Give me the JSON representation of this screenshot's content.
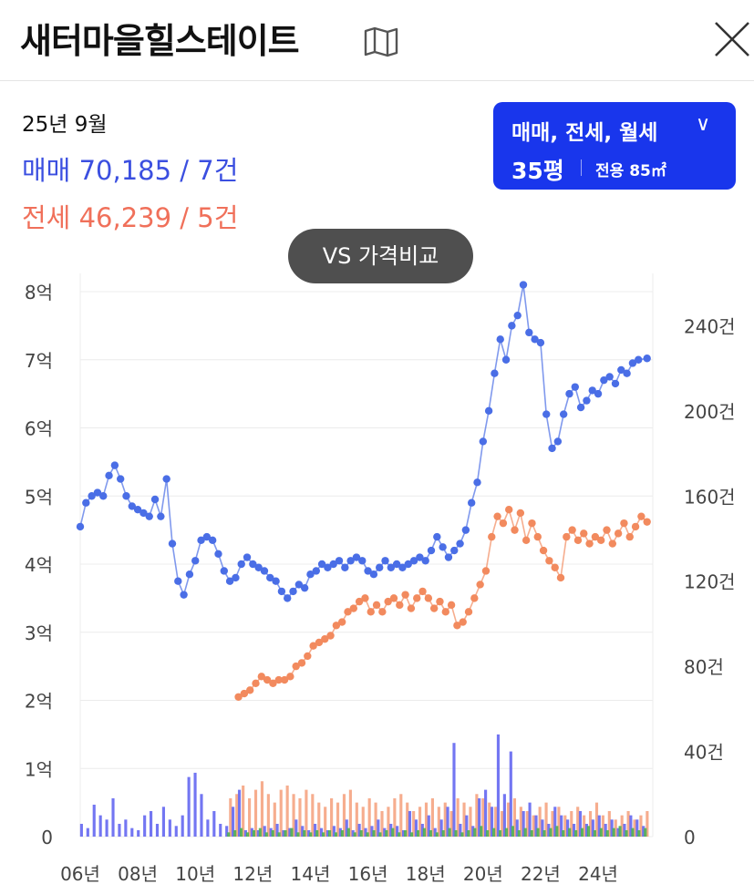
{
  "header": {
    "title": "새터마을힐스테이트",
    "map_icon": "map-icon",
    "close_icon": "close-icon"
  },
  "summary": {
    "date": "25년 9월",
    "sale_text": "매매 70,185 / 7건",
    "jeonse_text": "전세 46,239 / 5건"
  },
  "filter": {
    "types_label": "매매, 전세, 월세",
    "chevron": "∨",
    "pyeong_label": "35평",
    "area_label": "전용 85㎡"
  },
  "compare_button": {
    "label": "VS 가격비교"
  },
  "colors": {
    "sale": "#4a6ee6",
    "jeonse": "#f28a5e",
    "accent": "#1936ec",
    "wolse": "#4caf50"
  },
  "chart_data": {
    "type": "line",
    "x_tick_labels": [
      "06년",
      "08년",
      "10년",
      "12년",
      "14년",
      "16년",
      "18년",
      "20년",
      "22년",
      "24년"
    ],
    "x_ticks": [
      2006,
      2008,
      2010,
      2012,
      2014,
      2016,
      2018,
      2020,
      2022,
      2024
    ],
    "xlim": [
      2006.0,
      2025.9
    ],
    "y_left": {
      "tick_labels": [
        "0",
        "1억",
        "2억",
        "3억",
        "4억",
        "5억",
        "6억",
        "7억",
        "8억"
      ],
      "unit": "억",
      "lim": [
        0,
        8
      ]
    },
    "y_right": {
      "tick_labels": [
        "0",
        "40건",
        "80건",
        "120건",
        "160건",
        "200건",
        "240건"
      ],
      "unit": "건",
      "lim": [
        0,
        256
      ]
    },
    "grid": true,
    "series": [
      {
        "name": "매매",
        "axis": "left",
        "points": [
          [
            2006.0,
            4.55
          ],
          [
            2006.2,
            4.9
          ],
          [
            2006.4,
            5.0
          ],
          [
            2006.6,
            5.05
          ],
          [
            2006.8,
            5.0
          ],
          [
            2007.0,
            5.3
          ],
          [
            2007.2,
            5.45
          ],
          [
            2007.4,
            5.25
          ],
          [
            2007.6,
            5.0
          ],
          [
            2007.8,
            4.85
          ],
          [
            2008.0,
            4.8
          ],
          [
            2008.2,
            4.75
          ],
          [
            2008.4,
            4.7
          ],
          [
            2008.6,
            4.95
          ],
          [
            2008.8,
            4.7
          ],
          [
            2009.0,
            5.25
          ],
          [
            2009.2,
            4.3
          ],
          [
            2009.4,
            3.75
          ],
          [
            2009.6,
            3.55
          ],
          [
            2009.8,
            3.85
          ],
          [
            2010.0,
            4.05
          ],
          [
            2010.2,
            4.35
          ],
          [
            2010.4,
            4.4
          ],
          [
            2010.6,
            4.35
          ],
          [
            2010.8,
            4.15
          ],
          [
            2011.0,
            3.9
          ],
          [
            2011.2,
            3.75
          ],
          [
            2011.4,
            3.8
          ],
          [
            2011.6,
            4.0
          ],
          [
            2011.8,
            4.1
          ],
          [
            2012.0,
            4.0
          ],
          [
            2012.2,
            3.95
          ],
          [
            2012.4,
            3.9
          ],
          [
            2012.6,
            3.8
          ],
          [
            2012.8,
            3.75
          ],
          [
            2013.0,
            3.6
          ],
          [
            2013.2,
            3.5
          ],
          [
            2013.4,
            3.6
          ],
          [
            2013.6,
            3.7
          ],
          [
            2013.8,
            3.65
          ],
          [
            2014.0,
            3.85
          ],
          [
            2014.2,
            3.9
          ],
          [
            2014.4,
            4.0
          ],
          [
            2014.6,
            3.95
          ],
          [
            2014.8,
            4.0
          ],
          [
            2015.0,
            4.05
          ],
          [
            2015.2,
            3.95
          ],
          [
            2015.4,
            4.05
          ],
          [
            2015.6,
            4.1
          ],
          [
            2015.8,
            4.05
          ],
          [
            2016.0,
            3.9
          ],
          [
            2016.2,
            3.85
          ],
          [
            2016.4,
            3.95
          ],
          [
            2016.6,
            4.05
          ],
          [
            2016.8,
            3.95
          ],
          [
            2017.0,
            4.0
          ],
          [
            2017.2,
            3.95
          ],
          [
            2017.4,
            4.0
          ],
          [
            2017.6,
            4.05
          ],
          [
            2017.8,
            4.1
          ],
          [
            2018.0,
            4.05
          ],
          [
            2018.2,
            4.2
          ],
          [
            2018.4,
            4.4
          ],
          [
            2018.6,
            4.25
          ],
          [
            2018.8,
            4.1
          ],
          [
            2019.0,
            4.2
          ],
          [
            2019.2,
            4.3
          ],
          [
            2019.4,
            4.5
          ],
          [
            2019.6,
            4.9
          ],
          [
            2019.8,
            5.2
          ],
          [
            2020.0,
            5.8
          ],
          [
            2020.2,
            6.25
          ],
          [
            2020.4,
            6.8
          ],
          [
            2020.6,
            7.3
          ],
          [
            2020.8,
            7.0
          ],
          [
            2021.0,
            7.5
          ],
          [
            2021.2,
            7.65
          ],
          [
            2021.4,
            8.1
          ],
          [
            2021.6,
            7.4
          ],
          [
            2021.8,
            7.3
          ],
          [
            2022.0,
            7.25
          ],
          [
            2022.2,
            6.2
          ],
          [
            2022.4,
            5.7
          ],
          [
            2022.6,
            5.8
          ],
          [
            2022.8,
            6.2
          ],
          [
            2023.0,
            6.5
          ],
          [
            2023.2,
            6.6
          ],
          [
            2023.4,
            6.3
          ],
          [
            2023.6,
            6.4
          ],
          [
            2023.8,
            6.55
          ],
          [
            2024.0,
            6.5
          ],
          [
            2024.2,
            6.7
          ],
          [
            2024.4,
            6.75
          ],
          [
            2024.6,
            6.65
          ],
          [
            2024.8,
            6.85
          ],
          [
            2025.0,
            6.8
          ],
          [
            2025.2,
            6.95
          ],
          [
            2025.4,
            7.0
          ],
          [
            2025.7,
            7.02
          ]
        ]
      },
      {
        "name": "전세",
        "axis": "left",
        "points": [
          [
            2011.5,
            2.05
          ],
          [
            2011.7,
            2.1
          ],
          [
            2011.9,
            2.15
          ],
          [
            2012.1,
            2.25
          ],
          [
            2012.3,
            2.35
          ],
          [
            2012.5,
            2.3
          ],
          [
            2012.7,
            2.25
          ],
          [
            2012.9,
            2.3
          ],
          [
            2013.1,
            2.3
          ],
          [
            2013.3,
            2.35
          ],
          [
            2013.5,
            2.5
          ],
          [
            2013.7,
            2.55
          ],
          [
            2013.9,
            2.65
          ],
          [
            2014.1,
            2.8
          ],
          [
            2014.3,
            2.85
          ],
          [
            2014.5,
            2.9
          ],
          [
            2014.7,
            2.95
          ],
          [
            2014.9,
            3.1
          ],
          [
            2015.1,
            3.15
          ],
          [
            2015.3,
            3.3
          ],
          [
            2015.5,
            3.35
          ],
          [
            2015.7,
            3.45
          ],
          [
            2015.9,
            3.5
          ],
          [
            2016.1,
            3.3
          ],
          [
            2016.3,
            3.4
          ],
          [
            2016.5,
            3.3
          ],
          [
            2016.7,
            3.45
          ],
          [
            2016.9,
            3.5
          ],
          [
            2017.1,
            3.4
          ],
          [
            2017.3,
            3.55
          ],
          [
            2017.5,
            3.35
          ],
          [
            2017.7,
            3.5
          ],
          [
            2017.9,
            3.6
          ],
          [
            2018.1,
            3.5
          ],
          [
            2018.3,
            3.35
          ],
          [
            2018.5,
            3.45
          ],
          [
            2018.7,
            3.3
          ],
          [
            2018.9,
            3.4
          ],
          [
            2019.1,
            3.1
          ],
          [
            2019.3,
            3.15
          ],
          [
            2019.5,
            3.3
          ],
          [
            2019.7,
            3.5
          ],
          [
            2019.9,
            3.7
          ],
          [
            2020.1,
            3.9
          ],
          [
            2020.3,
            4.4
          ],
          [
            2020.5,
            4.7
          ],
          [
            2020.7,
            4.6
          ],
          [
            2020.9,
            4.8
          ],
          [
            2021.1,
            4.5
          ],
          [
            2021.3,
            4.75
          ],
          [
            2021.5,
            4.35
          ],
          [
            2021.7,
            4.6
          ],
          [
            2021.9,
            4.4
          ],
          [
            2022.1,
            4.2
          ],
          [
            2022.3,
            4.05
          ],
          [
            2022.5,
            3.95
          ],
          [
            2022.7,
            3.8
          ],
          [
            2022.9,
            4.4
          ],
          [
            2023.1,
            4.5
          ],
          [
            2023.3,
            4.35
          ],
          [
            2023.5,
            4.45
          ],
          [
            2023.7,
            4.3
          ],
          [
            2023.9,
            4.4
          ],
          [
            2024.1,
            4.35
          ],
          [
            2024.3,
            4.5
          ],
          [
            2024.5,
            4.3
          ],
          [
            2024.7,
            4.45
          ],
          [
            2024.9,
            4.6
          ],
          [
            2025.1,
            4.4
          ],
          [
            2025.3,
            4.55
          ],
          [
            2025.5,
            4.7
          ],
          [
            2025.7,
            4.62
          ]
        ]
      },
      {
        "name": "월세",
        "axis": "left",
        "points": []
      }
    ],
    "volume": {
      "axis": "right",
      "sale_counts": [
        6,
        4,
        15,
        10,
        8,
        18,
        6,
        8,
        4,
        3,
        10,
        12,
        6,
        14,
        8,
        5,
        10,
        28,
        30,
        20,
        8,
        12,
        6,
        5,
        14,
        22,
        3,
        4,
        3,
        5,
        4,
        6,
        3,
        4,
        8,
        5,
        3,
        6,
        4,
        3,
        5,
        4,
        8,
        3,
        6,
        4,
        5,
        8,
        4,
        6,
        5,
        3,
        12,
        8,
        6,
        10,
        4,
        8,
        14,
        44,
        6,
        10,
        5,
        18,
        22,
        14,
        48,
        20,
        40,
        8,
        12,
        16,
        10,
        8,
        6,
        14,
        10,
        8,
        6,
        12,
        6,
        8,
        10,
        6,
        8,
        4,
        6,
        10,
        8,
        5
      ],
      "jeonse_counts": [
        0,
        0,
        0,
        0,
        0,
        0,
        0,
        0,
        0,
        0,
        0,
        0,
        0,
        0,
        0,
        0,
        0,
        0,
        0,
        0,
        0,
        0,
        0,
        18,
        20,
        24,
        18,
        22,
        26,
        20,
        16,
        22,
        24,
        20,
        18,
        22,
        20,
        16,
        14,
        18,
        16,
        20,
        22,
        16,
        14,
        18,
        16,
        12,
        14,
        18,
        20,
        16,
        12,
        14,
        16,
        18,
        14,
        16,
        12,
        18,
        16,
        14,
        20,
        18,
        16,
        14,
        12,
        16,
        18,
        14,
        12,
        10,
        14,
        16,
        12,
        14,
        10,
        12,
        14,
        10,
        12,
        16,
        10,
        12,
        8,
        10,
        12,
        8,
        10,
        12
      ],
      "wolse_counts": [
        0,
        0,
        0,
        0,
        0,
        0,
        0,
        0,
        0,
        0,
        0,
        0,
        0,
        0,
        0,
        0,
        0,
        0,
        0,
        0,
        0,
        0,
        0,
        2,
        3,
        4,
        2,
        3,
        4,
        2,
        3,
        2,
        3,
        4,
        2,
        3,
        2,
        3,
        2,
        3,
        2,
        3,
        4,
        2,
        3,
        2,
        3,
        2,
        3,
        4,
        2,
        3,
        2,
        3,
        4,
        3,
        2,
        3,
        4,
        3,
        2,
        3,
        4,
        5,
        3,
        4,
        3,
        4,
        5,
        3,
        4,
        3,
        4,
        3,
        4,
        5,
        3,
        4,
        3,
        4,
        5,
        3,
        4,
        3,
        4,
        5,
        3,
        4,
        3,
        4
      ]
    }
  }
}
